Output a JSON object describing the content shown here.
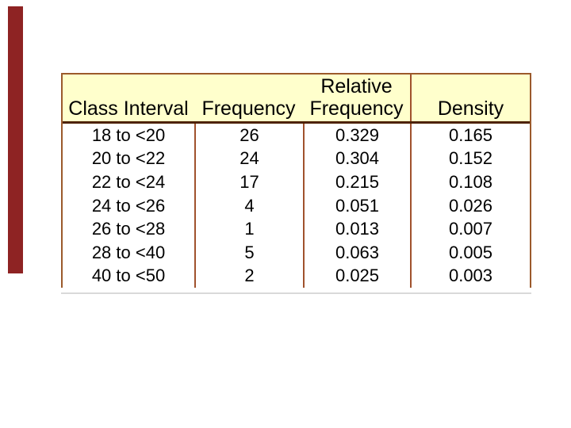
{
  "slide": {
    "accent_bar_color": "#8E2323",
    "background_color": "#FFFFFF"
  },
  "table": {
    "header": {
      "class_interval": "Class Interval",
      "frequency": "Frequency",
      "relative_line1": "Relative",
      "relative_line2": "Frequency",
      "density": "Density"
    },
    "colors": {
      "header_bg": "#FFFFCC",
      "outer_border": "#9B5A2B",
      "header_rule": "#4D2200",
      "column_rule": "#A0522D",
      "bottom_shadow": "#D9D9D9",
      "text": "#000000"
    }
  },
  "chart_data": {
    "type": "table",
    "title": "",
    "columns": [
      "Class Interval",
      "Frequency",
      "Relative Frequency",
      "Density"
    ],
    "rows": [
      [
        "18 to <20",
        "26",
        "0.329",
        "0.165"
      ],
      [
        "20 to <22",
        "24",
        "0.304",
        "0.152"
      ],
      [
        "22 to <24",
        "17",
        "0.215",
        "0.108"
      ],
      [
        "24 to <26",
        "4",
        "0.051",
        "0.026"
      ],
      [
        "26 to <28",
        "1",
        "0.013",
        "0.007"
      ],
      [
        "28 to <40",
        "5",
        "0.063",
        "0.005"
      ],
      [
        "40 to <50",
        "2",
        "0.025",
        "0.003"
      ]
    ]
  }
}
